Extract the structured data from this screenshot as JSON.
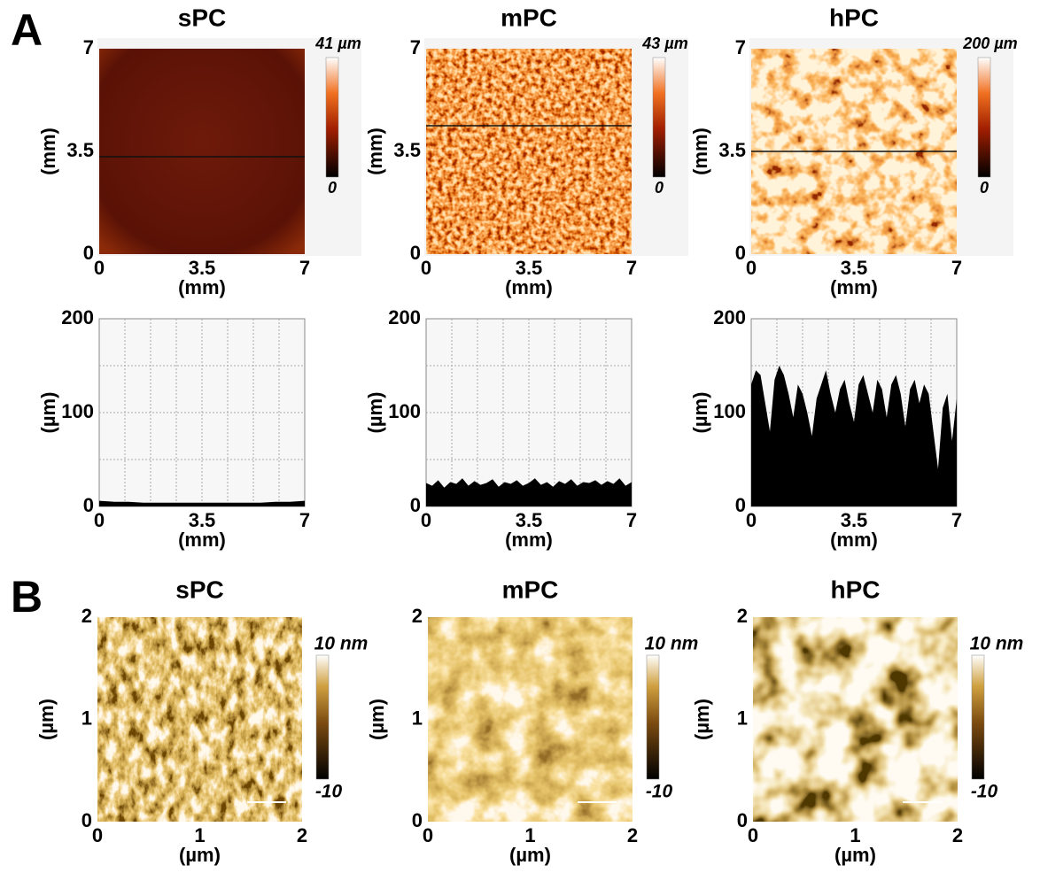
{
  "panel_a": {
    "label": "A",
    "maps": [
      {
        "title": "sPC",
        "y_ticks": [
          "7",
          "3.5",
          "0"
        ],
        "x_ticks": [
          "0",
          "3.5",
          "7"
        ],
        "x_label": "(mm)",
        "y_label": "(mm)",
        "scale_max": "41 µm",
        "scale_min": "0"
      },
      {
        "title": "mPC",
        "y_ticks": [
          "7",
          "3.5",
          "0"
        ],
        "x_ticks": [
          "0",
          "3.5",
          "7"
        ],
        "x_label": "(mm)",
        "y_label": "(mm)",
        "scale_max": "43 µm",
        "scale_min": "0"
      },
      {
        "title": "hPC",
        "y_ticks": [
          "7",
          "3.5",
          "0"
        ],
        "x_ticks": [
          "0",
          "3.5",
          "7"
        ],
        "x_label": "(mm)",
        "y_label": "(mm)",
        "scale_max": "200 µm",
        "scale_min": "0"
      }
    ],
    "profiles": [
      {
        "y_ticks": [
          "200",
          "100",
          "0"
        ],
        "x_ticks": [
          "0",
          "3.5",
          "7"
        ],
        "x_label": "(mm)",
        "y_label": "(µm)",
        "values": [
          6,
          5,
          5,
          4,
          4,
          4,
          4,
          4,
          4,
          4,
          4,
          4,
          5,
          5,
          6
        ]
      },
      {
        "y_ticks": [
          "200",
          "100",
          "0"
        ],
        "x_ticks": [
          "0",
          "3.5",
          "7"
        ],
        "x_label": "(mm)",
        "y_label": "(µm)",
        "values": [
          25,
          22,
          28,
          20,
          26,
          24,
          30,
          22,
          27,
          23,
          25,
          29,
          21,
          26,
          24,
          28,
          22,
          25,
          30,
          23,
          26,
          21,
          27,
          24,
          29,
          22,
          26,
          25,
          28,
          23,
          27,
          24,
          30,
          22,
          26
        ]
      },
      {
        "y_ticks": [
          "200",
          "100",
          "0"
        ],
        "x_ticks": [
          "0",
          "3.5",
          "7"
        ],
        "x_label": "(mm)",
        "y_label": "(µm)",
        "values": [
          130,
          145,
          140,
          110,
          80,
          135,
          150,
          140,
          120,
          95,
          130,
          120,
          100,
          75,
          115,
          130,
          145,
          120,
          100,
          125,
          135,
          110,
          90,
          130,
          140,
          120,
          100,
          135,
          125,
          95,
          130,
          140,
          120,
          85,
          125,
          135,
          110,
          130,
          120,
          80,
          40,
          105,
          120,
          70,
          115
        ]
      }
    ]
  },
  "panel_b": {
    "label": "B",
    "maps": [
      {
        "title": "sPC",
        "y_ticks": [
          "2",
          "1",
          "0"
        ],
        "x_ticks": [
          "0",
          "1",
          "2"
        ],
        "x_label": "(µm)",
        "y_label": "(µm)",
        "scale_max": "10 nm",
        "scale_min": "-10"
      },
      {
        "title": "mPC",
        "y_ticks": [
          "2",
          "1",
          "0"
        ],
        "x_ticks": [
          "0",
          "1",
          "2"
        ],
        "x_label": "(µm)",
        "y_label": "(µm)",
        "scale_max": "10 nm",
        "scale_min": "-10"
      },
      {
        "title": "hPC",
        "y_ticks": [
          "2",
          "1",
          "0"
        ],
        "x_ticks": [
          "0",
          "1",
          "2"
        ],
        "x_label": "(µm)",
        "y_label": "(µm)",
        "scale_max": "10 nm",
        "scale_min": "-10"
      }
    ]
  }
}
